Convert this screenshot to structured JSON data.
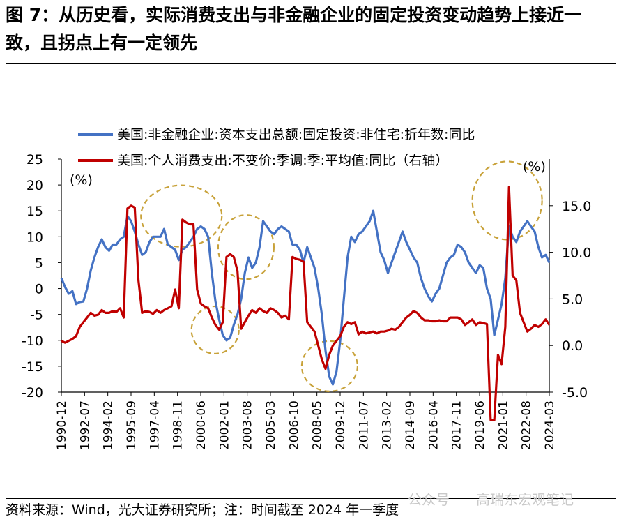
{
  "title": "图 7：从历史看，实际消费支出与非金融企业的固定投资变动趋势上接近一致，且拐点上有一定领先",
  "footer": "资料来源：Wind，光大证券研究所；注：时间截至 2024 年一季度",
  "watermark": {
    "left": "公众号",
    "right": "高瑞东宏观笔记"
  },
  "chart_data": {
    "type": "line",
    "left_axis": {
      "unit": "(%)",
      "ylim": [
        -20,
        25
      ],
      "ticks": [
        25,
        20,
        15,
        10,
        5,
        0,
        -5,
        -10,
        -15,
        -20
      ]
    },
    "right_axis": {
      "unit": "(%)",
      "ylim": [
        -5,
        20
      ],
      "ticks": [
        "15.0",
        "10.0",
        "5.0",
        "0.0",
        "-5.0"
      ]
    },
    "x_tick_labels": [
      "1990-12",
      "1992-07",
      "1994-02",
      "1995-09",
      "1997-04",
      "1998-11",
      "2000-06",
      "2002-01",
      "2003-08",
      "2005-03",
      "2006-10",
      "2008-05",
      "2009-12",
      "2011-07",
      "2013-02",
      "2014-09",
      "2016-04",
      "2017-11",
      "2019-06",
      "2021-01",
      "2022-08",
      "2024-03"
    ],
    "x_range": [
      1990.917,
      2024.167
    ],
    "series": [
      {
        "name": "美国:非金融企业:资本支出总额:固定投资:非住宅:折年数:同比",
        "axis": "left",
        "color": "#4472c4",
        "points": [
          [
            1990.92,
            2
          ],
          [
            1991.17,
            0.3
          ],
          [
            1991.42,
            -1
          ],
          [
            1991.67,
            -0.5
          ],
          [
            1991.92,
            -3
          ],
          [
            1992.17,
            -2.6
          ],
          [
            1992.42,
            -2.5
          ],
          [
            1992.67,
            0
          ],
          [
            1992.92,
            3.5
          ],
          [
            1993.17,
            6
          ],
          [
            1993.42,
            8
          ],
          [
            1993.67,
            9.5
          ],
          [
            1993.92,
            8
          ],
          [
            1994.17,
            7.3
          ],
          [
            1994.42,
            8.5
          ],
          [
            1994.67,
            8.5
          ],
          [
            1994.92,
            9.5
          ],
          [
            1995.17,
            10
          ],
          [
            1995.42,
            14
          ],
          [
            1995.67,
            13
          ],
          [
            1995.92,
            11
          ],
          [
            1996.17,
            8.5
          ],
          [
            1996.42,
            6.5
          ],
          [
            1996.67,
            7
          ],
          [
            1996.92,
            9
          ],
          [
            1997.17,
            10
          ],
          [
            1997.42,
            10
          ],
          [
            1997.67,
            10
          ],
          [
            1997.92,
            11.5
          ],
          [
            1998.17,
            8.5
          ],
          [
            1998.42,
            8
          ],
          [
            1998.67,
            7.5
          ],
          [
            1998.92,
            5.5
          ],
          [
            1999.17,
            7.5
          ],
          [
            1999.42,
            8
          ],
          [
            1999.67,
            9
          ],
          [
            1999.92,
            10
          ],
          [
            2000.17,
            11.5
          ],
          [
            2000.42,
            12
          ],
          [
            2000.67,
            11.5
          ],
          [
            2000.92,
            10
          ],
          [
            2001.17,
            3
          ],
          [
            2001.42,
            -2.5
          ],
          [
            2001.67,
            -6
          ],
          [
            2001.92,
            -9
          ],
          [
            2002.17,
            -10
          ],
          [
            2002.42,
            -9.5
          ],
          [
            2002.67,
            -7
          ],
          [
            2002.92,
            -5
          ],
          [
            2003.17,
            -2
          ],
          [
            2003.42,
            3
          ],
          [
            2003.67,
            6
          ],
          [
            2003.92,
            4
          ],
          [
            2004.17,
            5
          ],
          [
            2004.42,
            8
          ],
          [
            2004.67,
            13
          ],
          [
            2004.92,
            12
          ],
          [
            2005.17,
            11
          ],
          [
            2005.42,
            10.5
          ],
          [
            2005.67,
            11.5
          ],
          [
            2005.92,
            12
          ],
          [
            2006.17,
            11.5
          ],
          [
            2006.42,
            11
          ],
          [
            2006.67,
            8.5
          ],
          [
            2006.92,
            8.5
          ],
          [
            2007.17,
            7.5
          ],
          [
            2007.42,
            5
          ],
          [
            2007.67,
            8
          ],
          [
            2007.92,
            6
          ],
          [
            2008.17,
            4
          ],
          [
            2008.42,
            0
          ],
          [
            2008.67,
            -5
          ],
          [
            2008.92,
            -12
          ],
          [
            2009.17,
            -17
          ],
          [
            2009.42,
            -18.5
          ],
          [
            2009.67,
            -16
          ],
          [
            2009.92,
            -10
          ],
          [
            2010.17,
            -2
          ],
          [
            2010.42,
            6
          ],
          [
            2010.67,
            10
          ],
          [
            2010.92,
            9
          ],
          [
            2011.17,
            10.5
          ],
          [
            2011.42,
            11
          ],
          [
            2011.67,
            12
          ],
          [
            2011.92,
            13
          ],
          [
            2012.17,
            15
          ],
          [
            2012.42,
            11
          ],
          [
            2012.67,
            7
          ],
          [
            2012.92,
            5.5
          ],
          [
            2013.17,
            3
          ],
          [
            2013.42,
            5
          ],
          [
            2013.67,
            7
          ],
          [
            2013.92,
            9
          ],
          [
            2014.17,
            11
          ],
          [
            2014.42,
            9
          ],
          [
            2014.67,
            7.5
          ],
          [
            2014.92,
            6
          ],
          [
            2015.17,
            5
          ],
          [
            2015.42,
            2
          ],
          [
            2015.67,
            0
          ],
          [
            2015.92,
            -1.5
          ],
          [
            2016.17,
            -2.5
          ],
          [
            2016.42,
            -1
          ],
          [
            2016.67,
            0
          ],
          [
            2016.92,
            2.5
          ],
          [
            2017.17,
            5
          ],
          [
            2017.42,
            6
          ],
          [
            2017.67,
            6.5
          ],
          [
            2017.92,
            8.5
          ],
          [
            2018.17,
            8
          ],
          [
            2018.42,
            7
          ],
          [
            2018.67,
            5
          ],
          [
            2018.92,
            4
          ],
          [
            2019.17,
            3
          ],
          [
            2019.42,
            4.5
          ],
          [
            2019.67,
            4
          ],
          [
            2019.92,
            0
          ],
          [
            2020.17,
            -2
          ],
          [
            2020.42,
            -9
          ],
          [
            2020.67,
            -6
          ],
          [
            2020.92,
            -3
          ],
          [
            2021.17,
            2
          ],
          [
            2021.42,
            12
          ],
          [
            2021.67,
            10
          ],
          [
            2021.92,
            9
          ],
          [
            2022.17,
            11
          ],
          [
            2022.42,
            12
          ],
          [
            2022.67,
            13
          ],
          [
            2022.92,
            12
          ],
          [
            2023.17,
            11
          ],
          [
            2023.42,
            8
          ],
          [
            2023.67,
            6
          ],
          [
            2023.92,
            6.5
          ],
          [
            2024.17,
            5
          ]
        ]
      },
      {
        "name": "美国:个人消费支出:不变价:季调:季:平均值:同比（右轴）",
        "axis": "right",
        "color": "#c00000",
        "points": [
          [
            1990.92,
            0.5
          ],
          [
            1991.17,
            0.3
          ],
          [
            1991.42,
            0.5
          ],
          [
            1991.67,
            0.7
          ],
          [
            1991.92,
            1
          ],
          [
            1992.17,
            2
          ],
          [
            1992.42,
            2.5
          ],
          [
            1992.67,
            3
          ],
          [
            1992.92,
            3.5
          ],
          [
            1993.17,
            3.2
          ],
          [
            1993.42,
            3.3
          ],
          [
            1993.67,
            3.8
          ],
          [
            1993.92,
            3.5
          ],
          [
            1994.17,
            3.5
          ],
          [
            1994.42,
            3.7
          ],
          [
            1994.67,
            3.6
          ],
          [
            1994.92,
            4
          ],
          [
            1995.17,
            3
          ],
          [
            1995.42,
            14.7
          ],
          [
            1995.67,
            15
          ],
          [
            1995.92,
            14.8
          ],
          [
            1996.17,
            7
          ],
          [
            1996.42,
            3.5
          ],
          [
            1996.67,
            3.7
          ],
          [
            1996.92,
            3.6
          ],
          [
            1997.17,
            3.4
          ],
          [
            1997.42,
            3.8
          ],
          [
            1997.67,
            3.5
          ],
          [
            1997.92,
            3.8
          ],
          [
            1998.17,
            4
          ],
          [
            1998.42,
            4.2
          ],
          [
            1998.67,
            6
          ],
          [
            1998.92,
            4
          ],
          [
            1999.17,
            13.5
          ],
          [
            1999.42,
            13.2
          ],
          [
            1999.67,
            13
          ],
          [
            1999.92,
            13
          ],
          [
            2000.17,
            6
          ],
          [
            2000.42,
            4.5
          ],
          [
            2000.67,
            4.2
          ],
          [
            2000.92,
            4
          ],
          [
            2001.17,
            3
          ],
          [
            2001.42,
            2.2
          ],
          [
            2001.67,
            1.7
          ],
          [
            2001.92,
            2.5
          ],
          [
            2002.17,
            9.5
          ],
          [
            2002.42,
            9.8
          ],
          [
            2002.67,
            9.5
          ],
          [
            2002.92,
            8
          ],
          [
            2003.17,
            1.8
          ],
          [
            2003.42,
            2.5
          ],
          [
            2003.67,
            3.2
          ],
          [
            2003.92,
            3.8
          ],
          [
            2004.17,
            3.5
          ],
          [
            2004.42,
            4
          ],
          [
            2004.67,
            3.7
          ],
          [
            2004.92,
            3.5
          ],
          [
            2005.17,
            4
          ],
          [
            2005.42,
            3.8
          ],
          [
            2005.67,
            3.5
          ],
          [
            2005.92,
            3
          ],
          [
            2006.17,
            3.2
          ],
          [
            2006.42,
            2.8
          ],
          [
            2006.67,
            9.5
          ],
          [
            2006.92,
            9.3
          ],
          [
            2007.17,
            9.2
          ],
          [
            2007.42,
            9
          ],
          [
            2007.67,
            2.5
          ],
          [
            2007.92,
            2
          ],
          [
            2008.17,
            1.5
          ],
          [
            2008.42,
            0
          ],
          [
            2008.67,
            -1.5
          ],
          [
            2008.92,
            -2.5
          ],
          [
            2009.17,
            -1
          ],
          [
            2009.42,
            0
          ],
          [
            2009.67,
            0.5
          ],
          [
            2009.92,
            1
          ],
          [
            2010.17,
            2
          ],
          [
            2010.42,
            2.5
          ],
          [
            2010.67,
            2.3
          ],
          [
            2010.92,
            2.5
          ],
          [
            2011.17,
            1.2
          ],
          [
            2011.42,
            1.5
          ],
          [
            2011.67,
            1.3
          ],
          [
            2011.92,
            1.4
          ],
          [
            2012.17,
            1.5
          ],
          [
            2012.42,
            1.3
          ],
          [
            2012.67,
            1.5
          ],
          [
            2012.92,
            1.5
          ],
          [
            2013.17,
            1.6
          ],
          [
            2013.42,
            1.8
          ],
          [
            2013.67,
            1.7
          ],
          [
            2013.92,
            2
          ],
          [
            2014.17,
            2.5
          ],
          [
            2014.42,
            3
          ],
          [
            2014.67,
            3.3
          ],
          [
            2014.92,
            3.7
          ],
          [
            2015.17,
            3.5
          ],
          [
            2015.42,
            3
          ],
          [
            2015.67,
            2.7
          ],
          [
            2015.92,
            2.7
          ],
          [
            2016.17,
            2.6
          ],
          [
            2016.42,
            2.6
          ],
          [
            2016.67,
            2.7
          ],
          [
            2016.92,
            2.6
          ],
          [
            2017.17,
            2.6
          ],
          [
            2017.42,
            3
          ],
          [
            2017.67,
            3
          ],
          [
            2017.92,
            3
          ],
          [
            2018.17,
            2.8
          ],
          [
            2018.42,
            2.2
          ],
          [
            2018.67,
            2.5
          ],
          [
            2018.92,
            2.8
          ],
          [
            2019.17,
            2.2
          ],
          [
            2019.42,
            2.5
          ],
          [
            2019.67,
            2.4
          ],
          [
            2019.92,
            2.3
          ],
          [
            2020.17,
            -8
          ],
          [
            2020.42,
            -8
          ],
          [
            2020.67,
            -1
          ],
          [
            2020.92,
            -2
          ],
          [
            2021.17,
            2
          ],
          [
            2021.42,
            17
          ],
          [
            2021.67,
            7.5
          ],
          [
            2021.92,
            7
          ],
          [
            2022.17,
            3.5
          ],
          [
            2022.42,
            2.5
          ],
          [
            2022.67,
            1.5
          ],
          [
            2022.92,
            1.8
          ],
          [
            2023.17,
            2.2
          ],
          [
            2023.42,
            2
          ],
          [
            2023.67,
            2.3
          ],
          [
            2023.92,
            2.8
          ],
          [
            2024.17,
            2.2
          ]
        ]
      }
    ],
    "annotations": [
      {
        "type": "dashed-ellipse",
        "near_x": 1999.1,
        "near_y_left": 14
      },
      {
        "type": "dashed-ellipse",
        "near_x": 2001.4,
        "near_y_left": -8
      },
      {
        "type": "dashed-ellipse",
        "near_x": 2003.5,
        "near_y_left": 8
      },
      {
        "type": "dashed-ellipse",
        "near_x": 2009.2,
        "near_y_left": -15
      },
      {
        "type": "dashed-ellipse",
        "near_x": 2021.3,
        "near_y_left": 17
      }
    ]
  }
}
